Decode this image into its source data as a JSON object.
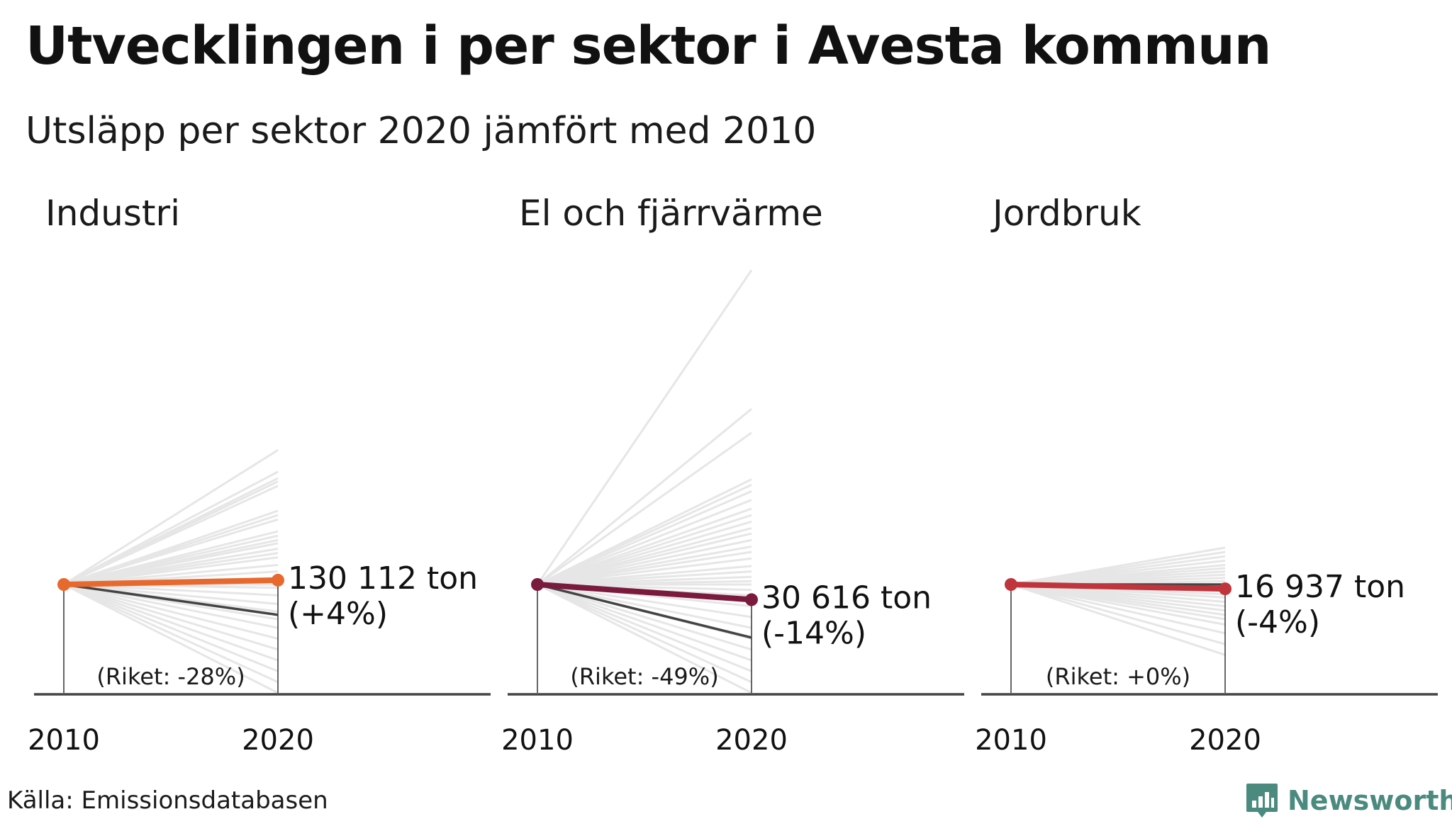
{
  "title": "Utvecklingen i per sektor i Avesta kommun",
  "subtitle": "Utsläpp per sektor 2020 jämfört med 2010",
  "source": "Källa: Emissionsdatabasen",
  "brand": {
    "name": "Newsworthy",
    "icon": "bar-chart-logo-icon",
    "color": "#4b8a7e"
  },
  "chart_data": [
    {
      "type": "line",
      "title": "Industri",
      "x": [
        "2010",
        "2020"
      ],
      "highlight": {
        "values": [
          1.0,
          1.04
        ],
        "value_label": "130 112 ton",
        "change_label": "(+4%)",
        "color": "#e8692e"
      },
      "national": {
        "values": [
          1.0,
          0.72
        ],
        "label": "(Riket: -28%)",
        "color": "#444444"
      },
      "context_color": "#e6e6e6",
      "context_end_values": [
        2.24,
        2.04,
        1.98,
        1.95,
        1.91,
        1.68,
        1.64,
        1.6,
        1.49,
        1.45,
        1.41,
        1.38,
        1.33,
        1.29,
        1.25,
        1.18,
        1.12,
        1.06,
        1.0,
        0.97,
        0.9,
        0.82,
        0.75,
        0.68,
        0.6,
        0.5,
        0.4,
        0.3,
        0.2,
        0.1,
        0.0
      ]
    },
    {
      "type": "line",
      "title": "El och fjärrvärme",
      "x": [
        "2010",
        "2020"
      ],
      "highlight": {
        "values": [
          1.0,
          0.86
        ],
        "value_label": "30 616 ton",
        "change_label": "(-14%)",
        "color": "#7a1a3c"
      },
      "national": {
        "values": [
          1.0,
          0.51
        ],
        "label": "(Riket: -49%)",
        "color": "#444444"
      },
      "context_color": "#e6e6e6",
      "context_end_values": [
        3.9,
        2.62,
        2.4,
        1.97,
        1.92,
        1.86,
        1.78,
        1.7,
        1.64,
        1.58,
        1.52,
        1.47,
        1.41,
        1.35,
        1.3,
        1.24,
        1.17,
        1.12,
        1.07,
        1.03,
        1.0,
        0.95,
        0.9,
        0.8,
        0.7,
        0.6,
        0.5,
        0.4,
        0.3,
        0.2,
        0.1,
        0.0
      ]
    },
    {
      "type": "line",
      "title": "Jordbruk",
      "x": [
        "2010",
        "2020"
      ],
      "highlight": {
        "values": [
          1.0,
          0.96
        ],
        "value_label": "16 937 ton",
        "change_label": "(-4%)",
        "color": "#c0343b"
      },
      "national": {
        "values": [
          1.0,
          1.0
        ],
        "label": "(Riket: +0%)",
        "color": "#444444"
      },
      "context_color": "#e6e6e6",
      "context_end_values": [
        1.34,
        1.3,
        1.26,
        1.22,
        1.18,
        1.15,
        1.12,
        1.09,
        1.06,
        1.03,
        1.0,
        0.97,
        0.94,
        0.91,
        0.88,
        0.84,
        0.8,
        0.76,
        0.72,
        0.68,
        0.63,
        0.55,
        0.45,
        0.35
      ]
    }
  ]
}
